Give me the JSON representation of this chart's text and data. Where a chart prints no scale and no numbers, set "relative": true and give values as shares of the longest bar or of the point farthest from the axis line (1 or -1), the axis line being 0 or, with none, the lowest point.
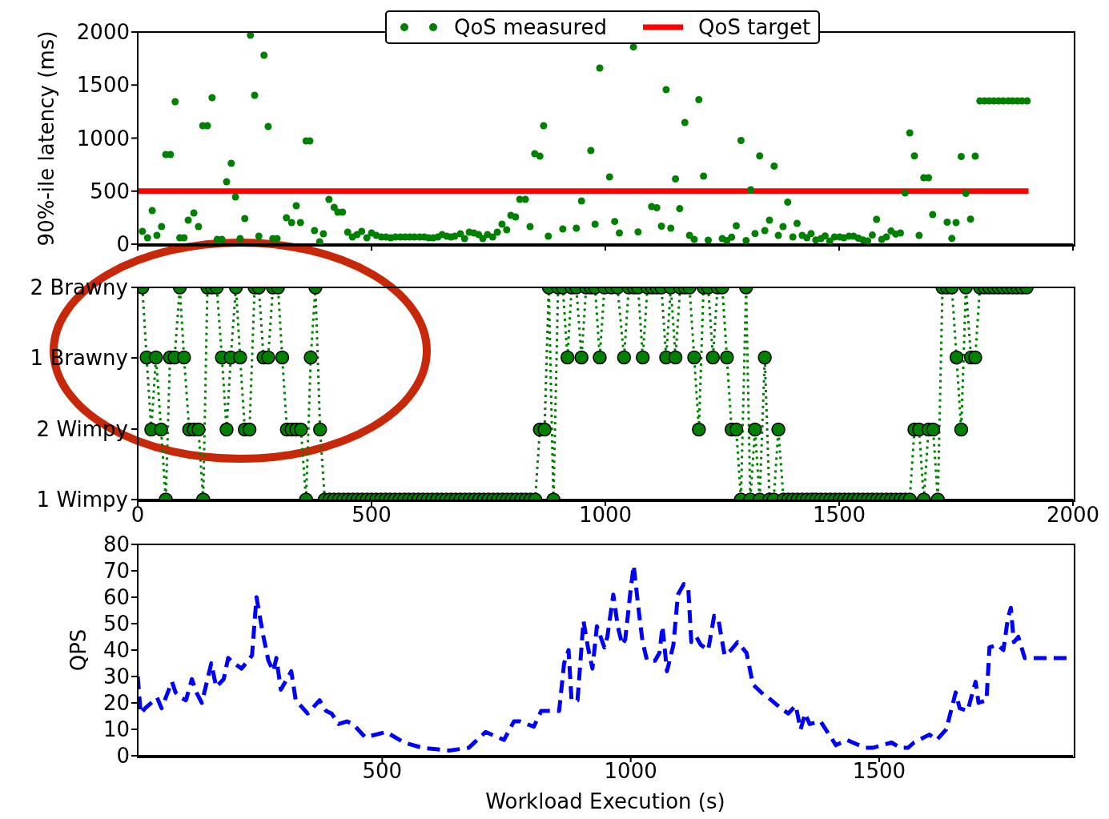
{
  "chart_data": [
    {
      "type": "scatter",
      "ylabel": "90%-ile latency (ms)",
      "xlim": [
        0,
        2000
      ],
      "xticks": [
        0,
        500,
        1000,
        1500,
        2000
      ],
      "ylim": [
        0,
        2000
      ],
      "yticks": [
        0,
        500,
        1000,
        1500,
        2000
      ],
      "tick_labels": "y",
      "legend": "top",
      "marker": "circle",
      "series": [
        {
          "name": "QoS measured",
          "color": "#008000",
          "x": [
            10,
            21,
            31,
            41,
            51,
            60,
            70,
            80,
            90,
            99,
            108,
            120,
            130,
            139,
            149,
            159,
            170,
            180,
            190,
            200,
            209,
            219,
            229,
            241,
            250,
            259,
            270,
            279,
            289,
            298,
            318,
            329,
            339,
            348,
            360,
            368,
            378,
            389,
            397,
            409,
            420,
            428,
            438,
            449,
            459,
            469,
            479,
            490,
            500,
            510,
            521,
            531,
            541,
            551,
            562,
            572,
            582,
            592,
            603,
            613,
            622,
            632,
            642,
            651,
            661,
            670,
            678,
            690,
            699,
            709,
            719,
            729,
            738,
            748,
            759,
            769,
            779,
            789,
            798,
            808,
            817,
            829,
            839,
            849,
            860,
            868,
            878,
            909,
            938,
            949,
            969,
            978,
            988,
            1009,
            1020,
            1030,
            1060,
            1070,
            1099,
            1110,
            1120,
            1130,
            1140,
            1150,
            1159,
            1170,
            1180,
            1190,
            1200,
            1210,
            1220,
            1250,
            1260,
            1270,
            1280,
            1290,
            1301,
            1311,
            1320,
            1330,
            1341,
            1351,
            1361,
            1370,
            1380,
            1390,
            1401,
            1410,
            1421,
            1431,
            1440,
            1450,
            1461,
            1470,
            1480,
            1490,
            1501,
            1510,
            1521,
            1531,
            1541,
            1551,
            1561,
            1571,
            1580,
            1591,
            1601,
            1611,
            1621,
            1631,
            1641,
            1651,
            1661,
            1671,
            1681,
            1691,
            1700,
            1731,
            1741,
            1750,
            1761,
            1771,
            1781,
            1791,
            1801,
            1811,
            1821,
            1831,
            1841,
            1851,
            1862,
            1871,
            1881,
            1891,
            1902
          ],
          "values": [
            121,
            60,
            317,
            83,
            166,
            845,
            845,
            1343,
            60,
            60,
            226,
            294,
            166,
            1117,
            1117,
            1381,
            45,
            45,
            589,
            762,
            445,
            53,
            242,
            1970,
            1404,
            75,
            1781,
            1109,
            53,
            53,
            249,
            204,
            362,
            204,
            974,
            974,
            128,
            23,
            98,
            423,
            347,
            302,
            302,
            113,
            68,
            91,
            121,
            60,
            106,
            83,
            68,
            68,
            60,
            68,
            68,
            68,
            68,
            68,
            68,
            68,
            60,
            60,
            68,
            91,
            75,
            68,
            75,
            98,
            53,
            113,
            106,
            91,
            53,
            91,
            68,
            113,
            189,
            136,
            272,
            257,
            423,
            423,
            166,
            853,
            830,
            1117,
            75,
            143,
            151,
            408,
            883,
            189,
            1660,
            634,
            214,
            106,
            1859,
            115,
            355,
            343,
            170,
            1457,
            151,
            615,
            335,
            1147,
            83,
            45,
            1362,
            642,
            38,
            53,
            34,
            66,
            174,
            977,
            34,
            513,
            100,
            832,
            128,
            226,
            736,
            83,
            166,
            396,
            68,
            196,
            83,
            60,
            100,
            40,
            53,
            78,
            30,
            68,
            68,
            60,
            75,
            75,
            57,
            40,
            30,
            86,
            234,
            45,
            68,
            124,
            95,
            106,
            483,
            1049,
            832,
            83,
            626,
            626,
            279,
            208,
            54,
            204,
            826,
            479,
            236,
            830,
            1351,
            1351,
            1351,
            1351,
            1351,
            1351,
            1351,
            1351,
            1351,
            1351,
            1351
          ]
        },
        {
          "name": "QoS target",
          "type": "line",
          "marker": "none",
          "line_style": "solid",
          "color": "#ff0000",
          "x": [
            0,
            1905
          ],
          "values": [
            500,
            500
          ]
        }
      ]
    },
    {
      "type": "line",
      "xlim": [
        0,
        2000
      ],
      "xticks": [
        0,
        500,
        1000,
        1500,
        2000
      ],
      "relative": true,
      "annotations": [
        "1 Wimpy",
        "2 Wimpy",
        "1 Brawny",
        "2 Brawny"
      ],
      "marker": "circle",
      "line_style": "dotted",
      "color": "#008000",
      "x": [
        10,
        19,
        29,
        39,
        50,
        60,
        69,
        79,
        90,
        99,
        110,
        120,
        130,
        140,
        149,
        159,
        169,
        180,
        190,
        199,
        210,
        219,
        229,
        239,
        250,
        259,
        269,
        279,
        289,
        300,
        309,
        319,
        329,
        339,
        349,
        360,
        370,
        380,
        390,
        400,
        410,
        420,
        430,
        440,
        450,
        460,
        470,
        480,
        490,
        500,
        510,
        520,
        530,
        540,
        550,
        560,
        570,
        580,
        590,
        600,
        610,
        620,
        630,
        640,
        650,
        660,
        670,
        680,
        690,
        700,
        710,
        720,
        730,
        740,
        750,
        760,
        770,
        780,
        790,
        800,
        810,
        820,
        830,
        840,
        850,
        860,
        870,
        879,
        889,
        899,
        909,
        919,
        928,
        938,
        949,
        959,
        969,
        978,
        988,
        998,
        1013,
        1026,
        1040,
        1050,
        1061,
        1070,
        1080,
        1090,
        1100,
        1110,
        1120,
        1130,
        1140,
        1150,
        1160,
        1170,
        1180,
        1190,
        1200,
        1210,
        1220,
        1230,
        1240,
        1250,
        1260,
        1270,
        1280,
        1290,
        1301,
        1310,
        1320,
        1330,
        1341,
        1351,
        1360,
        1370,
        1381,
        1391,
        1401,
        1411,
        1421,
        1431,
        1441,
        1451,
        1461,
        1471,
        1481,
        1491,
        1501,
        1511,
        1521,
        1531,
        1541,
        1551,
        1561,
        1571,
        1581,
        1591,
        1601,
        1611,
        1621,
        1631,
        1641,
        1651,
        1661,
        1671,
        1681,
        1691,
        1701,
        1711,
        1721,
        1731,
        1741,
        1751,
        1761,
        1771,
        1782,
        1791,
        1801,
        1811,
        1821,
        1831,
        1841,
        1851,
        1861,
        1871,
        1881,
        1891,
        1901
      ],
      "values": [
        1,
        0.67,
        0.33,
        0.67,
        0.33,
        0,
        0.67,
        0.67,
        1,
        0.67,
        0.33,
        0.33,
        0.33,
        0,
        1,
        1,
        1,
        0.67,
        0.33,
        0.67,
        1,
        0.67,
        0.33,
        0.33,
        1,
        1,
        0.67,
        0.67,
        1,
        1,
        0.67,
        0.33,
        0.33,
        0.33,
        0.33,
        0,
        0.67,
        1,
        0.33,
        0,
        0,
        0,
        0,
        0,
        0,
        0,
        0,
        0,
        0,
        0,
        0,
        0,
        0,
        0,
        0,
        0,
        0,
        0,
        0,
        0,
        0,
        0,
        0,
        0,
        0,
        0,
        0,
        0,
        0,
        0,
        0,
        0,
        0,
        0,
        0,
        0,
        0,
        0,
        0,
        0,
        0,
        0,
        0,
        0,
        0,
        0.33,
        0.33,
        1,
        0,
        1,
        1,
        0.67,
        1,
        1,
        0.67,
        1,
        1,
        1,
        0.67,
        1,
        1,
        1,
        0.67,
        1,
        1,
        1,
        0.67,
        1,
        1,
        1,
        1,
        0.67,
        1,
        0.67,
        1,
        1,
        1,
        0.67,
        0.33,
        1,
        1,
        0.67,
        1,
        1,
        0.67,
        0.33,
        0.33,
        0,
        1,
        0,
        0.33,
        0,
        0.67,
        0,
        0,
        0.33,
        0,
        0,
        0,
        0,
        0,
        0,
        0,
        0,
        0,
        0,
        0,
        0,
        0,
        0,
        0,
        0,
        0,
        0,
        0,
        0,
        0,
        0,
        0,
        0,
        0,
        0,
        0,
        0,
        0.33,
        0.33,
        0,
        0.33,
        0.33,
        0,
        1,
        1,
        1,
        0.67,
        0.33,
        1,
        0.67,
        0.67,
        1,
        1,
        1,
        1,
        1,
        1,
        1,
        1,
        1,
        1,
        1
      ]
    },
    {
      "type": "line",
      "xlabel": "Workload Execution (s)",
      "ylabel": "QPS",
      "xlim": [
        8,
        1890
      ],
      "xticks": [
        500,
        1000,
        1500
      ],
      "ylim": [
        0,
        80
      ],
      "yticks": [
        0,
        10,
        20,
        30,
        40,
        50,
        60,
        70,
        80
      ],
      "marker": "none",
      "line_style": "dashed",
      "color": "#0000ff",
      "x": [
        8,
        14,
        23,
        47,
        56,
        77,
        84,
        95,
        105,
        117,
        126,
        137,
        156,
        166,
        181,
        190,
        202,
        217,
        238,
        247,
        260,
        271,
        281,
        287,
        296,
        317,
        326,
        350,
        374,
        387,
        398,
        412,
        429,
        441,
        466,
        508,
        544,
        581,
        635,
        674,
        708,
        745,
        765,
        777,
        805,
        820,
        832,
        856,
        866,
        875,
        881,
        893,
        905,
        914,
        923,
        932,
        947,
        953,
        965,
        974,
        983,
        989,
        1000,
        1006,
        1018,
        1024,
        1033,
        1049,
        1058,
        1064,
        1073,
        1086,
        1095,
        1107,
        1116,
        1122,
        1132,
        1141,
        1156,
        1168,
        1177,
        1189,
        1202,
        1215,
        1233,
        1246,
        1268,
        1277,
        1302,
        1317,
        1332,
        1342,
        1351,
        1360,
        1382,
        1413,
        1435,
        1447,
        1472,
        1487,
        1525,
        1543,
        1558,
        1570,
        1601,
        1616,
        1635,
        1654,
        1662,
        1678,
        1694,
        1700,
        1716,
        1722,
        1738,
        1750,
        1759,
        1765,
        1771,
        1780,
        1793,
        1805,
        1890
      ],
      "values": [
        30,
        16,
        18,
        22,
        18,
        28,
        24,
        22,
        21,
        29,
        24,
        20,
        35,
        26,
        29,
        37,
        35,
        33,
        38,
        60,
        46,
        36,
        32,
        37,
        25,
        32,
        21,
        16,
        21,
        17,
        16,
        12,
        13,
        12,
        7,
        9,
        5,
        3,
        2,
        3,
        9,
        6,
        13,
        13,
        11,
        17,
        17,
        17,
        35,
        40,
        21,
        21,
        51,
        41,
        33,
        49,
        41,
        45,
        61,
        49,
        42,
        44,
        63,
        72,
        52,
        43,
        36,
        36,
        39,
        49,
        32,
        42,
        61,
        65,
        63,
        43,
        45,
        42,
        40,
        53,
        51,
        38,
        40,
        43,
        39,
        27,
        23,
        22,
        18,
        16,
        19,
        10,
        16,
        12,
        13,
        4,
        6,
        5,
        3,
        3,
        5,
        3,
        3,
        5,
        8,
        6,
        10,
        24,
        18,
        17,
        28,
        20,
        21,
        41,
        42,
        40,
        52,
        56,
        43,
        45,
        37,
        37,
        37
      ]
    }
  ]
}
